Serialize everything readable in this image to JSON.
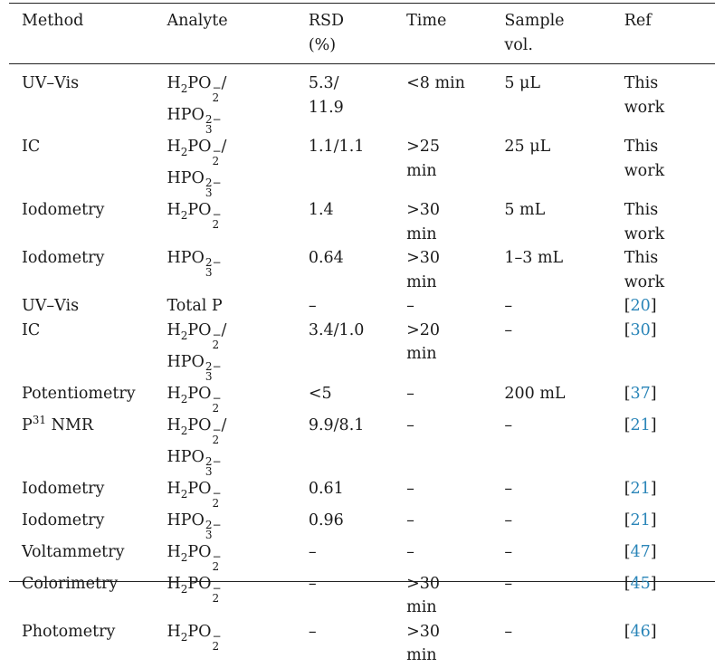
{
  "table": {
    "headers": [
      "Method",
      "Analyte",
      "RSD (%)",
      "Time",
      "Sample vol.",
      "Ref"
    ],
    "header_lines": {
      "method": [
        "Method"
      ],
      "analyte": [
        "Analyte"
      ],
      "rsd": [
        "RSD",
        "(%)"
      ],
      "time": [
        "Time"
      ],
      "sample": [
        "Sample",
        "vol."
      ],
      "ref": [
        "Ref"
      ]
    },
    "rows": [
      {
        "method": "UV–Vis",
        "analyte": "H2PO2−/HPO32−",
        "rsd": [
          "5.3/",
          "11.9"
        ],
        "time": [
          "<8 min"
        ],
        "sample": [
          "5 μL"
        ],
        "ref": [
          "This",
          "work"
        ],
        "ref_is_link": false
      },
      {
        "method": "IC",
        "analyte": "H2PO2−/HPO32−",
        "rsd": [
          "1.1/1.1"
        ],
        "time": [
          ">25",
          "min"
        ],
        "sample": [
          "25 μL"
        ],
        "ref": [
          "This",
          "work"
        ],
        "ref_is_link": false
      },
      {
        "method": "Iodometry",
        "analyte": "H2PO2−",
        "rsd": [
          "1.4"
        ],
        "time": [
          ">30",
          "min"
        ],
        "sample": [
          "5 mL"
        ],
        "ref": [
          "This",
          "work"
        ],
        "ref_is_link": false
      },
      {
        "method": "Iodometry",
        "analyte": "HPO32−",
        "rsd": [
          "0.64"
        ],
        "time": [
          ">30",
          "min"
        ],
        "sample": [
          "1–3 mL"
        ],
        "ref": [
          "This",
          "work"
        ],
        "ref_is_link": false
      },
      {
        "method": "UV–Vis",
        "analyte": "Total P",
        "rsd": [
          "–"
        ],
        "time": [
          "–"
        ],
        "sample": [
          "–"
        ],
        "ref": [
          "20"
        ],
        "ref_is_link": true
      },
      {
        "method": "IC",
        "analyte": "H2PO2−/HPO32−",
        "rsd": [
          "3.4/1.0"
        ],
        "time": [
          ">20",
          "min"
        ],
        "sample": [
          "–"
        ],
        "ref": [
          "30"
        ],
        "ref_is_link": true
      },
      {
        "method": "Potentiometry",
        "analyte": "H2PO2−",
        "rsd": [
          "<5"
        ],
        "time": [
          "–"
        ],
        "sample": [
          "200 mL"
        ],
        "ref": [
          "37"
        ],
        "ref_is_link": true
      },
      {
        "method": "P31 NMR",
        "analyte": "H2PO2−/HPO32−",
        "rsd": [
          "9.9/8.1"
        ],
        "time": [
          "–"
        ],
        "sample": [
          "–"
        ],
        "ref": [
          "21"
        ],
        "ref_is_link": true
      },
      {
        "method": "Iodometry",
        "analyte": "H2PO2−",
        "rsd": [
          "0.61"
        ],
        "time": [
          "–"
        ],
        "sample": [
          "–"
        ],
        "ref": [
          "21"
        ],
        "ref_is_link": true
      },
      {
        "method": "Iodometry",
        "analyte": "HPO32−",
        "rsd": [
          "0.96"
        ],
        "time": [
          "–"
        ],
        "sample": [
          "–"
        ],
        "ref": [
          "21"
        ],
        "ref_is_link": true
      },
      {
        "method": "Voltammetry",
        "analyte": "H2PO2−",
        "rsd": [
          "–"
        ],
        "time": [
          "–"
        ],
        "sample": [
          "–"
        ],
        "ref": [
          "47"
        ],
        "ref_is_link": true
      },
      {
        "method": "Colorimetry",
        "analyte": "H2PO2−",
        "rsd": [
          "–"
        ],
        "time": [
          ">30",
          "min"
        ],
        "sample": [
          "–"
        ],
        "ref": [
          "45"
        ],
        "ref_is_link": true
      },
      {
        "method": "Photometry",
        "analyte": "H2PO2−",
        "rsd": [
          "–"
        ],
        "time": [
          ">30",
          "min"
        ],
        "sample": [
          "–"
        ],
        "ref": [
          "46"
        ],
        "ref_is_link": true
      }
    ],
    "colors": {
      "link": "#2a85b8",
      "text": "#1a1a1a",
      "rule": "#222222"
    }
  }
}
